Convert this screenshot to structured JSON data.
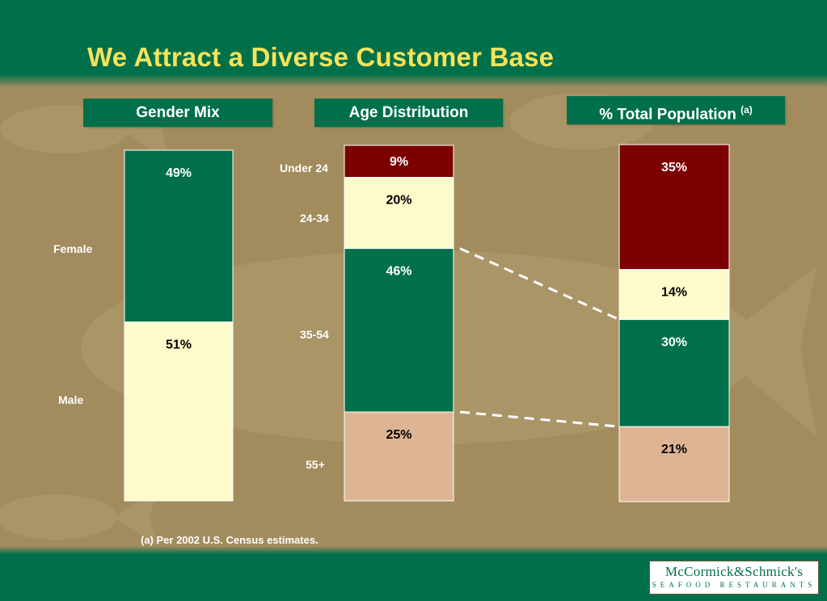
{
  "title": "We Attract a Diverse Customer Base",
  "colors": {
    "background": "#a28c5e",
    "band": "#00704a",
    "title": "#f5e35a",
    "green": "#00704a",
    "cream": "#fdfacb",
    "maroon": "#7c0000",
    "tan": "#deb594"
  },
  "chart_data": [
    {
      "type": "bar",
      "stacked": true,
      "title": "Gender Mix",
      "categories": [
        "Female",
        "Male"
      ],
      "values": [
        49,
        51
      ],
      "labels": [
        "49%",
        "51%"
      ],
      "colors": [
        "#00704a",
        "#fdfacb"
      ]
    },
    {
      "type": "bar",
      "stacked": true,
      "title": "Age Distribution",
      "categories": [
        "Under 24",
        "24-34",
        "35-54",
        "55+"
      ],
      "values": [
        9,
        20,
        46,
        25
      ],
      "labels": [
        "9%",
        "20%",
        "46%",
        "25%"
      ],
      "colors": [
        "#7c0000",
        "#fdfacb",
        "#00704a",
        "#deb594"
      ]
    },
    {
      "type": "bar",
      "stacked": true,
      "title": "% Total Population",
      "title_superscript": "(a)",
      "values": [
        35,
        14,
        30,
        21
      ],
      "labels": [
        "35%",
        "14%",
        "30%",
        "21%"
      ],
      "colors": [
        "#7c0000",
        "#fdfacb",
        "#00704a",
        "#deb594"
      ]
    }
  ],
  "footnote": "(a)  Per 2002 U.S. Census estimates.",
  "logo": {
    "name": "McCormick&Schmick's",
    "tagline": "SEAFOOD RESTAURANTS"
  },
  "icons": {
    "background": "fish-watermark-icon"
  }
}
